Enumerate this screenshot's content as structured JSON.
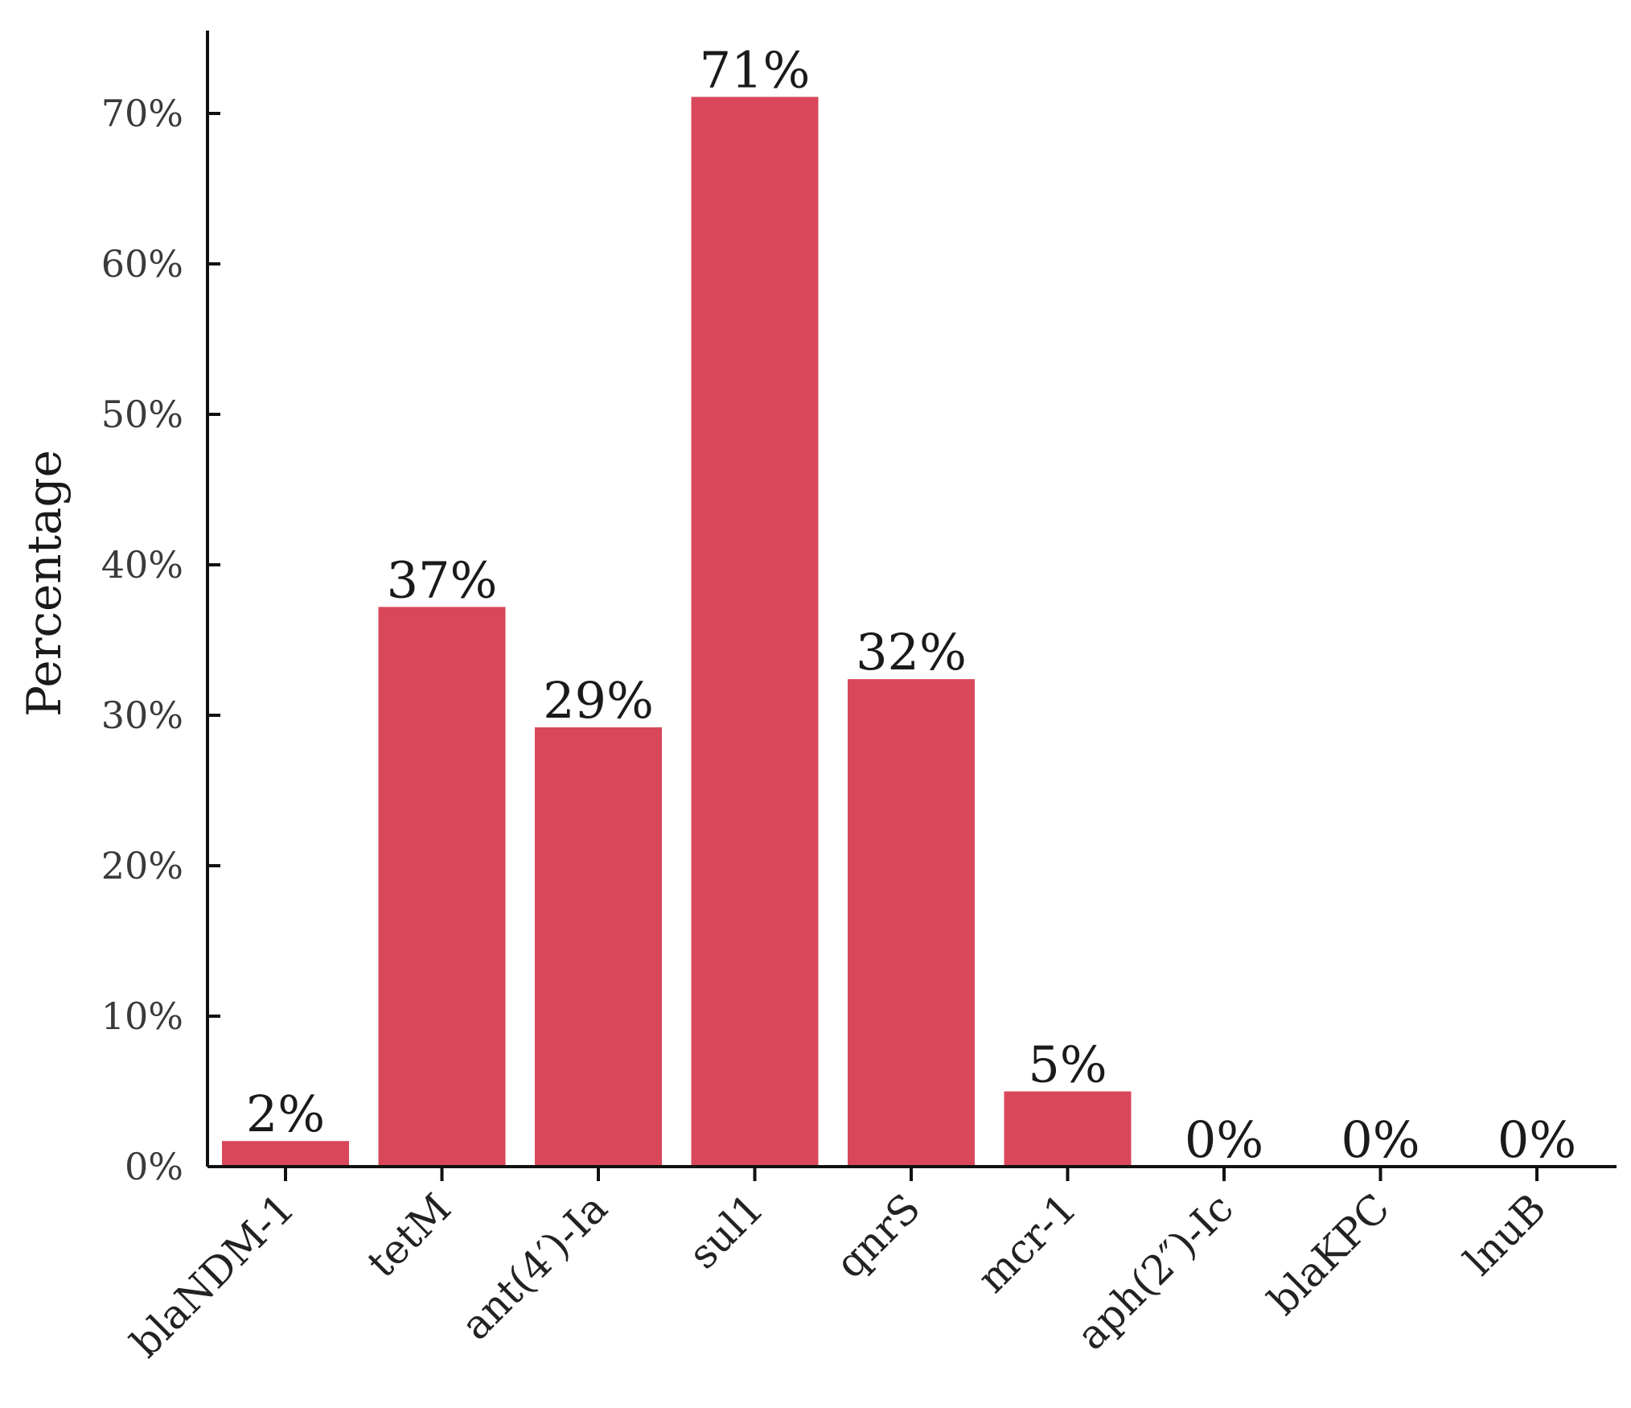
{
  "chart_data": {
    "type": "bar",
    "categories": [
      "blaNDM-1",
      "tetM",
      "ant(4′)-Ia",
      "sul1",
      "qnrS",
      "mcr-1",
      "aph(2″)-Ic",
      "blaKPC",
      "lnuB"
    ],
    "values": [
      1.7,
      37.2,
      29.2,
      71.1,
      32.4,
      5.0,
      0,
      0,
      0
    ],
    "data_labels": [
      "2%",
      "37%",
      "29%",
      "71%",
      "32%",
      "5%",
      "0%",
      "0%",
      "0%"
    ],
    "title": "",
    "xlabel": "",
    "ylabel": "Percentage",
    "ylim": [
      0,
      75
    ],
    "yticks": [
      0,
      10,
      20,
      30,
      40,
      50,
      60,
      70
    ],
    "ytick_labels": [
      "0%",
      "10%",
      "20%",
      "30%",
      "40%",
      "50%",
      "60%",
      "70%"
    ],
    "bar_color": "#d9485a",
    "grid": false,
    "legend": "none"
  }
}
